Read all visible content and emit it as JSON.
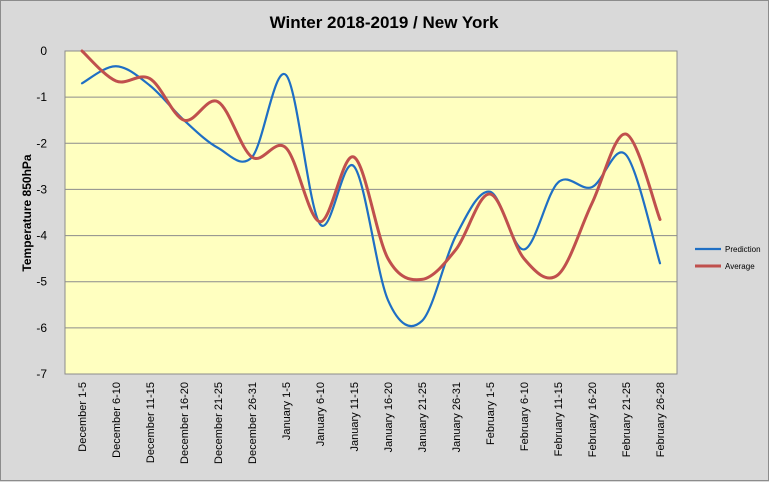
{
  "chart_data": {
    "type": "line",
    "title": "Winter 2018-2019 / New York",
    "xlabel": "",
    "ylabel": "Temperature 850hPa",
    "ylim": [
      -7,
      0
    ],
    "yticks": [
      0,
      -1,
      -2,
      -3,
      -4,
      -5,
      -6,
      -7
    ],
    "grid": true,
    "legend_position": "right",
    "categories": [
      "December 1-5",
      "December 6-10",
      "December 11-15",
      "December 16-20",
      "December 21-25",
      "December 26-31",
      "January 1-5",
      "January 6-10",
      "January 11-15",
      "January 16-20",
      "January 21-25",
      "January 26-31",
      "February 1-5",
      "February 6-10",
      "February 11-15",
      "February 16-20",
      "February 21-25",
      "February 26-28"
    ],
    "series": [
      {
        "name": "Prediction",
        "color": "#1f6fc4",
        "values": [
          -0.7,
          -0.33,
          -0.75,
          -1.5,
          -2.1,
          -2.3,
          -0.52,
          -3.75,
          -2.5,
          -5.4,
          -5.85,
          -4.0,
          -3.05,
          -4.3,
          -2.85,
          -2.95,
          -2.25,
          -4.6
        ]
      },
      {
        "name": "Average",
        "color": "#c0504d",
        "values": [
          0.0,
          -0.65,
          -0.6,
          -1.5,
          -1.1,
          -2.3,
          -2.1,
          -3.7,
          -2.3,
          -4.5,
          -4.95,
          -4.3,
          -3.1,
          -4.5,
          -4.85,
          -3.3,
          -1.8,
          -3.65
        ]
      }
    ]
  },
  "colors": {
    "plot_background": "#ffffc0",
    "outer_background": "#d9d9d9",
    "gridline": "#8c8c8c"
  }
}
